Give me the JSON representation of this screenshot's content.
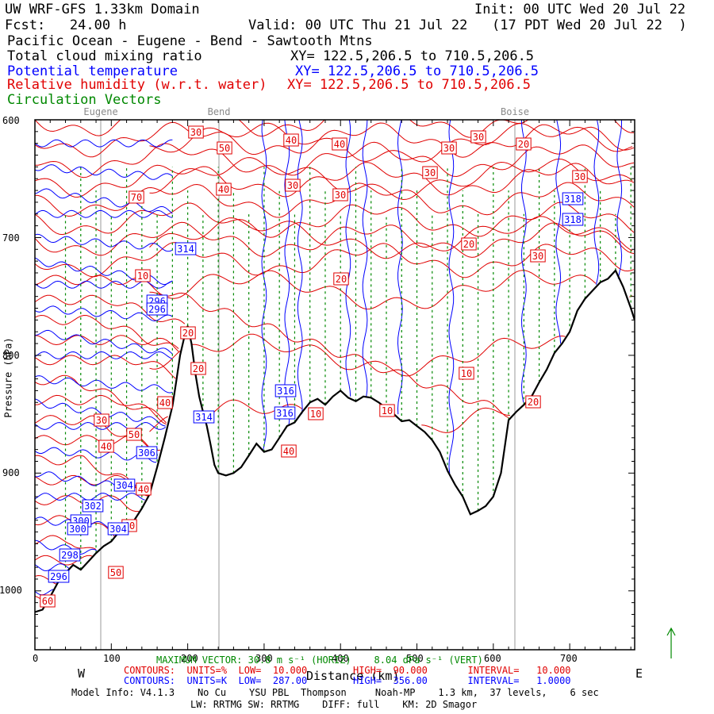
{
  "header": {
    "line1_left": "UW WRF-GFS 1.33km Domain",
    "line1_right": "Init: 00 UTC Wed 20 Jul 22",
    "line2_left": "Fcst:   24.00 h",
    "line2_right": "Valid: 00 UTC Thu 21 Jul 22   (17 PDT Wed 20 Jul 22  )",
    "line3": "Pacific Ocean - Eugene - Bend - Sawtooth Mtns",
    "fields": [
      {
        "name": "Total cloud mixing ratio",
        "xy": "XY= 122.5,206.5 to 710.5,206.5",
        "color": "#000000"
      },
      {
        "name": "Potential temperature",
        "xy": "XY= 122.5,206.5 to 710.5,206.5",
        "color": "#0000ff"
      },
      {
        "name": "Relative humidity (w.r.t. water)",
        "xy": "XY= 122.5,206.5 to 710.5,206.5",
        "color": "#e00000"
      },
      {
        "name": "Circulation Vectors",
        "xy": "",
        "color": "#008800"
      }
    ]
  },
  "colors": {
    "theta": "#0000ff",
    "rh": "#e00000",
    "vectors": "#008800",
    "terrain": "#000000",
    "reference": "#999999"
  },
  "footer": {
    "max_vector": "MAXIMUM VECTOR: 30.8 m s⁻¹ (HORIZ)    8.04 dPa s⁻¹ (VERT)",
    "rh_contours": "CONTOURS:  UNITS=%  LOW=  10.000        HIGH=  90.000       INTERVAL=   10.000",
    "theta_contours": "CONTOURS:  UNITS=K  LOW=  287.00        HIGH=  356.00       INTERVAL=   1.0000",
    "model_info": "Model Info: V4.1.3    No Cu    YSU PBL  Thompson     Noah-MP    1.3 km,  37 levels,    6 sec",
    "radiation": "LW: RRTMG SW: RRTMG    DIFF: full    KM: 2D Smagor"
  },
  "chart_data": {
    "type": "line",
    "xlabel": "Distance (km)",
    "ylabel": "Pressure (hPa)",
    "xlim": [
      0,
      785
    ],
    "ylim": [
      1050,
      600
    ],
    "x_ticks": [
      "0",
      "100",
      "200",
      "300",
      "400",
      "500",
      "600",
      "700"
    ],
    "y_ticks": [
      "600",
      "700",
      "800",
      "900",
      "1000"
    ],
    "x_end_labels": {
      "left": "W",
      "right": "E"
    },
    "locations": [
      {
        "name": "Eugene",
        "x": 123
      },
      {
        "name": "Bend",
        "x": 343
      },
      {
        "name": "Boise",
        "x": 890
      }
    ],
    "terrain": {
      "name": "Terrain (surface pressure)",
      "x": [
        0,
        10,
        20,
        30,
        40,
        50,
        60,
        70,
        80,
        90,
        100,
        110,
        120,
        130,
        140,
        150,
        160,
        170,
        180,
        185,
        190,
        195,
        200,
        205,
        210,
        215,
        220,
        225,
        230,
        235,
        240,
        250,
        260,
        270,
        280,
        290,
        300,
        310,
        320,
        330,
        340,
        350,
        360,
        370,
        380,
        390,
        400,
        410,
        420,
        430,
        440,
        450,
        460,
        470,
        480,
        490,
        500,
        510,
        520,
        530,
        540,
        550,
        560,
        570,
        580,
        590,
        600,
        610,
        620,
        630,
        640,
        650,
        660,
        670,
        680,
        690,
        700,
        710,
        720,
        730,
        740,
        750,
        760,
        770,
        780,
        785
      ],
      "values": [
        1018,
        1016,
        1005,
        993,
        985,
        978,
        982,
        975,
        968,
        962,
        958,
        950,
        945,
        940,
        930,
        918,
        895,
        870,
        843,
        822,
        800,
        786,
        775,
        790,
        815,
        835,
        848,
        860,
        876,
        893,
        900,
        902,
        900,
        895,
        885,
        875,
        882,
        880,
        870,
        860,
        857,
        848,
        840,
        837,
        842,
        835,
        830,
        836,
        839,
        835,
        836,
        840,
        845,
        850,
        856,
        855,
        860,
        865,
        872,
        882,
        898,
        910,
        920,
        935,
        932,
        928,
        920,
        900,
        855,
        848,
        842,
        835,
        823,
        812,
        798,
        790,
        780,
        762,
        752,
        745,
        738,
        735,
        728,
        742,
        760,
        770
      ]
    },
    "rh_contour_labels": [
      "10",
      "20",
      "30",
      "40",
      "50",
      "60",
      "70"
    ],
    "theta_contour_labels": [
      "296",
      "298",
      "300",
      "302",
      "304",
      "306",
      "314",
      "316",
      "318"
    ]
  }
}
